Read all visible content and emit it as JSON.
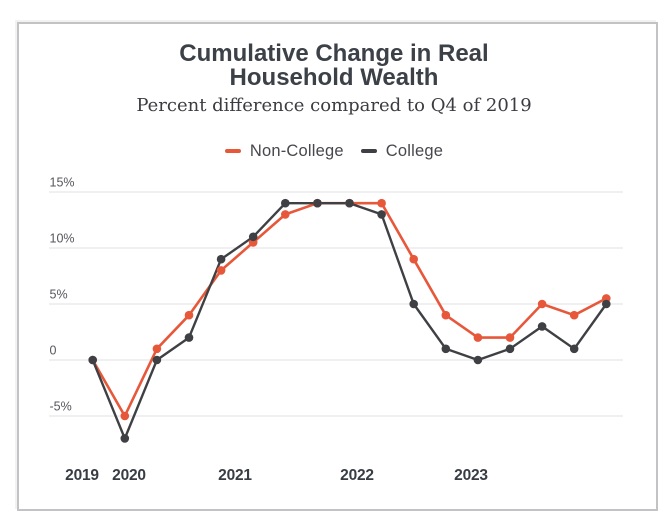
{
  "header": {
    "title_lines": [
      "Cumulative Change in Real",
      "Household Wealth"
    ],
    "subtitle": "Percent difference compared to Q4 of 2019"
  },
  "colors": {
    "non_college": "#e7583b",
    "college": "#3f4044",
    "gridline": "#e8e8ea",
    "axis_text": "#56565e",
    "year_text": "#383d44",
    "card_border": "#c3c3c6"
  },
  "chart_data": {
    "type": "line",
    "title": "Cumulative Change in Real Household Wealth",
    "subtitle": "Percent difference compared to Q4 of 2019",
    "unit": "percent difference vs Q4 2019",
    "grid": "horizontal",
    "legend_position": "top-center",
    "ylim": [
      -8.5,
      16
    ],
    "x": [
      "2019 Q4",
      "2020 Q1",
      "2020 Q2",
      "2020 Q3",
      "2020 Q4",
      "2021 Q1",
      "2021 Q2",
      "2021 Q3",
      "2021 Q4",
      "2022 Q1",
      "2022 Q2",
      "2022 Q3",
      "2022 Q4",
      "2023 Q1",
      "2023 Q2",
      "2023 Q3",
      "2023 Q4"
    ],
    "series": [
      {
        "name": "Non-College",
        "color": "#e7583b",
        "values": [
          0,
          -5,
          1,
          4,
          8,
          10.5,
          13,
          14,
          14,
          14,
          9,
          4,
          2,
          2,
          5,
          4,
          5.5
        ]
      },
      {
        "name": "College",
        "color": "#3f4044",
        "values": [
          0,
          -7,
          0,
          2,
          9,
          11,
          14,
          14,
          14,
          13,
          5,
          1,
          0,
          1,
          3,
          1,
          5
        ]
      }
    ],
    "yticks": [
      {
        "label": "15%",
        "value": 15
      },
      {
        "label": "10%",
        "value": 10
      },
      {
        "label": "5%",
        "value": 5
      },
      {
        "label": "0",
        "value": 0
      },
      {
        "label": "-5%",
        "value": -5
      }
    ],
    "x_year_labels": [
      "2019",
      "2020",
      "2021",
      "2022",
      "2023"
    ]
  }
}
